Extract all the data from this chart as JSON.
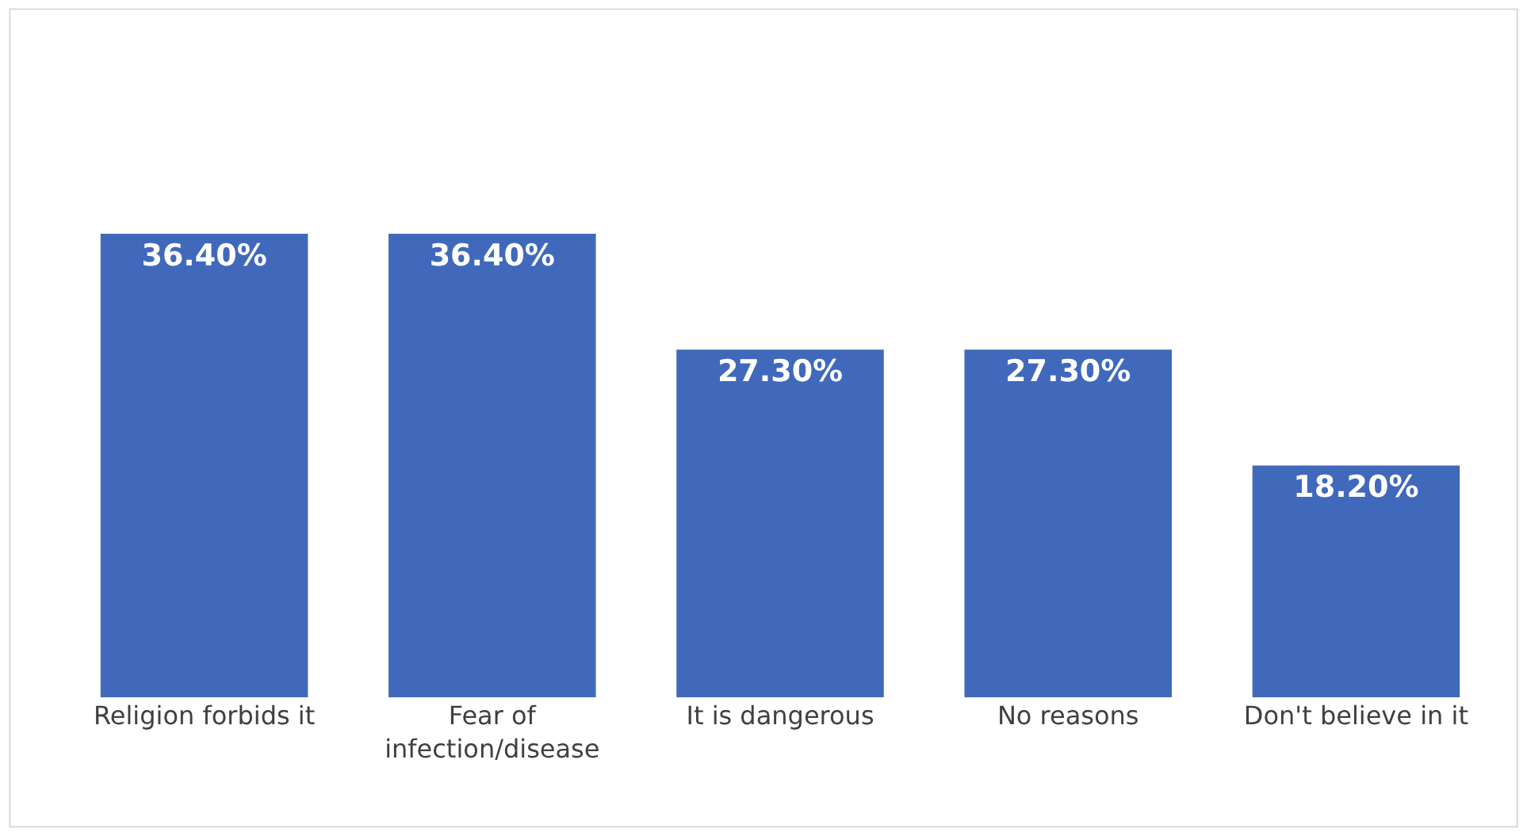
{
  "chart_data": {
    "type": "bar",
    "categories": [
      "Religion forbids it",
      "Fear of infection/disease",
      "It is dangerous",
      "No reasons",
      "Don't believe in it"
    ],
    "values": [
      36.4,
      36.4,
      27.3,
      27.3,
      18.2
    ],
    "value_labels": [
      "36.40%",
      "36.40%",
      "27.30%",
      "27.30%",
      "18.20%"
    ],
    "color": "#4069bb",
    "legend": false
  }
}
